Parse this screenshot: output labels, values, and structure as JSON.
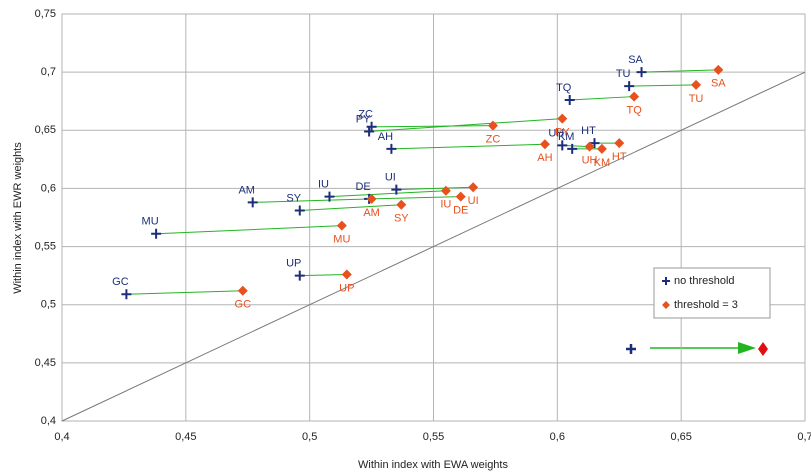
{
  "chart_data": {
    "type": "scatter",
    "x_label": "Within index with EWA weights",
    "y_label": "Within index with EWR weights",
    "xlim": [
      0.4,
      0.7
    ],
    "ylim": [
      0.4,
      0.75
    ],
    "xticks": [
      {
        "value": 0.4,
        "label": "0,4"
      },
      {
        "value": 0.45,
        "label": "0,45"
      },
      {
        "value": 0.5,
        "label": "0,5"
      },
      {
        "value": 0.55,
        "label": "0,55"
      },
      {
        "value": 0.6,
        "label": "0,6"
      },
      {
        "value": 0.65,
        "label": "0,65"
      },
      {
        "value": 0.7,
        "label": "0,7"
      }
    ],
    "yticks": [
      {
        "value": 0.4,
        "label": "0,4"
      },
      {
        "value": 0.45,
        "label": "0,45"
      },
      {
        "value": 0.5,
        "label": "0,5"
      },
      {
        "value": 0.55,
        "label": "0,55"
      },
      {
        "value": 0.6,
        "label": "0,6"
      },
      {
        "value": 0.65,
        "label": "0,65"
      },
      {
        "value": 0.7,
        "label": "0,7"
      },
      {
        "value": 0.75,
        "label": "0,75"
      }
    ],
    "grid": true,
    "legend_position": "right",
    "connector_color": "#22b522",
    "series": [
      {
        "name": "no threshold",
        "color": "#1c2e7a",
        "marker": "plus",
        "labels": [
          "SA",
          "TU",
          "TQ",
          "PY",
          "ZC",
          "AH",
          "UH",
          "KM",
          "HT",
          "AM",
          "DE",
          "IU",
          "UI",
          "SY",
          "MU",
          "UP",
          "GC"
        ],
        "x": [
          0.634,
          0.629,
          0.605,
          0.524,
          0.525,
          0.533,
          0.602,
          0.606,
          0.615,
          0.477,
          0.524,
          0.508,
          0.535,
          0.496,
          0.438,
          0.496,
          0.426
        ],
        "values": [
          0.7,
          0.688,
          0.676,
          0.649,
          0.653,
          0.634,
          0.637,
          0.634,
          0.639,
          0.588,
          0.591,
          0.593,
          0.599,
          0.581,
          0.561,
          0.525,
          0.509
        ]
      },
      {
        "name": "threshold = 3",
        "color": "#e8501e",
        "marker": "diamond",
        "labels": [
          "SA",
          "TU",
          "TQ",
          "PY",
          "ZC",
          "AH",
          "UH",
          "KM",
          "HT",
          "AM",
          "DE",
          "IU",
          "UI",
          "SY",
          "MU",
          "UP",
          "GC"
        ],
        "x": [
          0.665,
          0.656,
          0.631,
          0.602,
          0.574,
          0.595,
          0.613,
          0.618,
          0.625,
          0.525,
          0.561,
          0.555,
          0.566,
          0.537,
          0.513,
          0.515,
          0.473
        ],
        "values": [
          0.702,
          0.689,
          0.679,
          0.66,
          0.654,
          0.638,
          0.636,
          0.634,
          0.639,
          0.591,
          0.593,
          0.598,
          0.601,
          0.586,
          0.568,
          0.526,
          0.512
        ]
      }
    ]
  }
}
